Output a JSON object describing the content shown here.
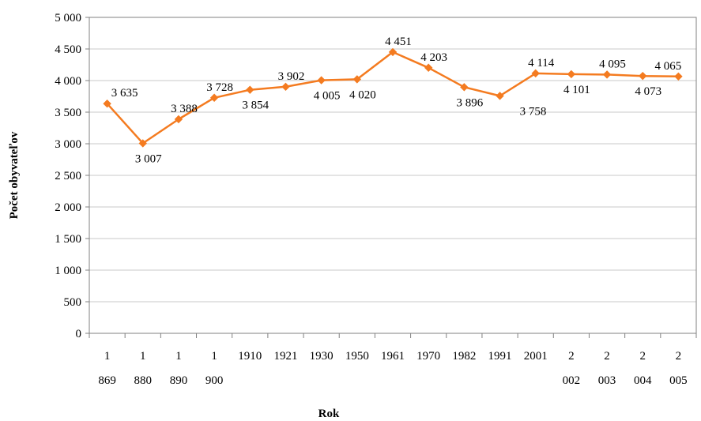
{
  "chart_data": {
    "type": "line",
    "title": "",
    "xlabel": "Rok",
    "ylabel": "Počet obyvateľov",
    "categories": [
      "1 869",
      "1 880",
      "1 890",
      "1 900",
      "1910",
      "1921",
      "1930",
      "1950",
      "1961",
      "1970",
      "1982",
      "1991",
      "2001",
      "2 002",
      "2 003",
      "2 004",
      "2 005"
    ],
    "values": [
      3635,
      3007,
      3388,
      3728,
      3854,
      3902,
      4005,
      4020,
      4451,
      4203,
      3896,
      3758,
      4114,
      4101,
      4095,
      4073,
      4065
    ],
    "value_labels": [
      "3 635",
      "3 007",
      "3 388",
      "3 728",
      "3 854",
      "3 902",
      "4 005",
      "4 020",
      "4 451",
      "4 203",
      "3 896",
      "3 758",
      "4 114",
      "4 101",
      "4 095",
      "4 073",
      "4 065"
    ],
    "ylim": [
      0,
      5000
    ],
    "y_ticks": [
      0,
      500,
      1000,
      1500,
      2000,
      2500,
      3000,
      3500,
      4000,
      4500,
      5000
    ],
    "y_tick_labels": [
      "0",
      "500",
      "1 000",
      "1 500",
      "2 000",
      "2 500",
      "3 000",
      "3 500",
      "4 000",
      "4 500",
      "5 000"
    ],
    "grid": true,
    "legend": "none",
    "colors": {
      "line": "#F47B20",
      "marker": "#F47B20",
      "grid": "#C8C8C8",
      "axis": "#808080"
    },
    "marker": "diamond"
  }
}
